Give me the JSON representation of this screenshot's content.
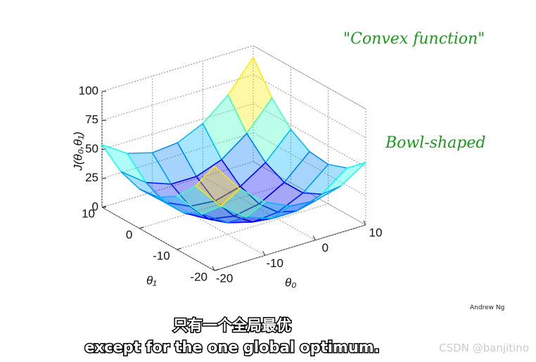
{
  "chart_data": {
    "type": "surface",
    "zlabel": "J(θ₀,θ₁)",
    "xlabel": "θ₀",
    "ylabel": "θ₁",
    "x": [
      -20,
      -15,
      -10,
      -5,
      0,
      5,
      10
    ],
    "y": [
      -20,
      -15,
      -10,
      -5,
      0,
      5,
      10
    ],
    "z": [
      [
        90,
        64,
        46,
        36,
        34,
        40,
        54
      ],
      [
        64,
        40,
        24,
        16,
        16,
        24,
        40
      ],
      [
        46,
        24,
        10,
        4,
        6,
        16,
        34
      ],
      [
        36,
        16,
        4,
        0,
        4,
        16,
        36
      ],
      [
        34,
        16,
        6,
        4,
        10,
        24,
        46
      ],
      [
        40,
        24,
        16,
        16,
        24,
        40,
        64
      ],
      [
        54,
        40,
        34,
        36,
        46,
        64,
        90
      ]
    ],
    "xlim": [
      -20,
      10
    ],
    "ylim": [
      -20,
      10
    ],
    "zlim": [
      0,
      100
    ],
    "xticks": [
      -20,
      -10,
      0,
      10
    ],
    "yticks": [
      -20,
      -10,
      0,
      10
    ],
    "zticks": [
      0,
      25,
      50,
      75,
      100
    ],
    "grid": true,
    "colormap": "jet",
    "annotations": [
      "\"Convex function\"",
      "Bowl-shaped"
    ]
  },
  "slide_footer": "Andrew Ng",
  "subtitles": [
    "只有一个全局最优",
    "except for the one global optimum."
  ],
  "watermark": "CSDN @banjitino"
}
